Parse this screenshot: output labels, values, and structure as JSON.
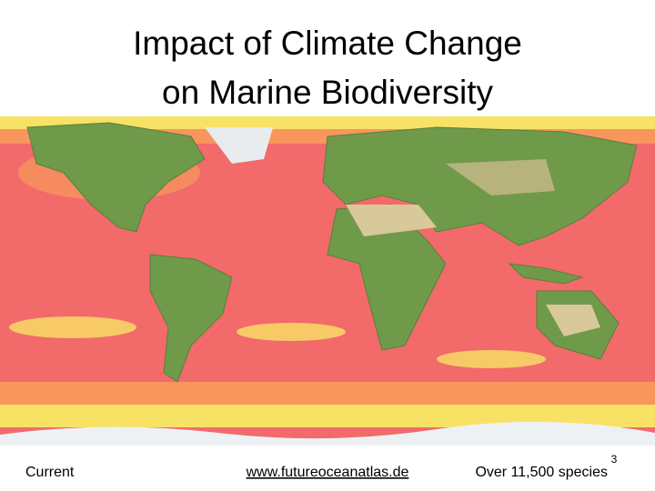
{
  "slide": {
    "title": [
      "Impact of Climate Change",
      "on Marine Biodiversity"
    ],
    "footer": {
      "left": "Current",
      "link": "www.futureoceanatlas.de",
      "right": "Over 11,500 species",
      "page_number": 3
    }
  }
}
